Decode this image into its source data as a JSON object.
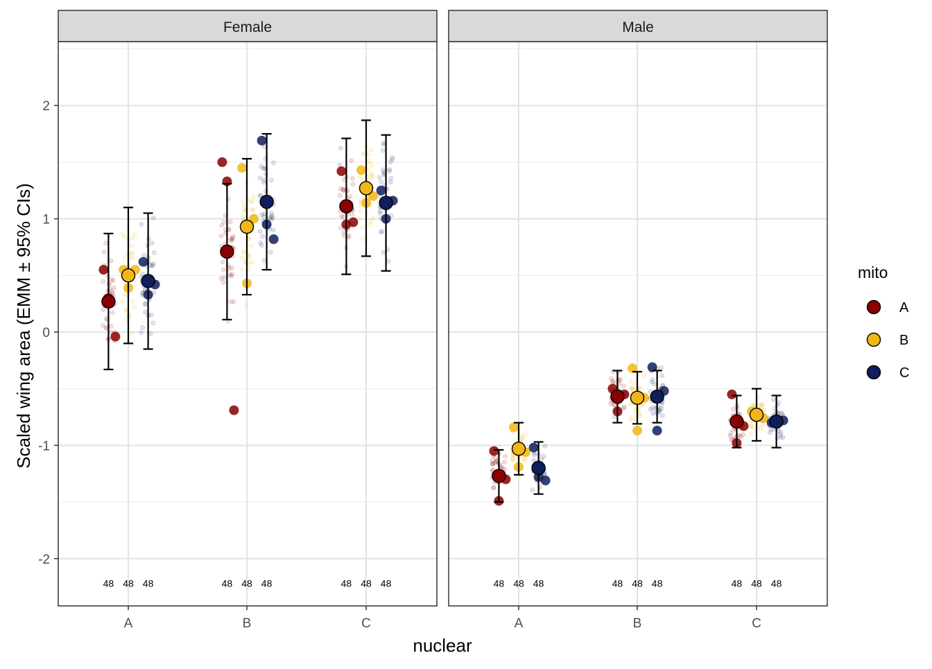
{
  "chart_data": {
    "type": "scatter",
    "subtype": "faceted dot-and-errorbar (estimated marginal means with 95% CI, raw points jittered)",
    "xlabel": "nuclear",
    "ylabel": "Scaled wing area (EMM ± 95% CIs)",
    "ylim": [
      -2.42,
      2.55
    ],
    "y_ticks": [
      -2,
      -1,
      0,
      1,
      2
    ],
    "y_tick_labels": [
      "-2",
      "-1",
      "0",
      "1",
      "2"
    ],
    "categories": [
      "A",
      "B",
      "C"
    ],
    "grid": true,
    "legend": {
      "title": "mito",
      "position": "right",
      "entries": [
        {
          "name": "A",
          "color": "#8B0000"
        },
        {
          "name": "B",
          "color": "#F2B716"
        },
        {
          "name": "C",
          "color": "#101F5B"
        }
      ]
    },
    "count_label_y": -2.22,
    "panels": [
      {
        "strip": "Female",
        "groups": [
          {
            "nuclear": "A",
            "series": [
              {
                "mito": "A",
                "emm": 0.27,
                "lower": -0.33,
                "upper": 0.87,
                "n": "48",
                "replicates": [
                  0.55,
                  0.3,
                  -0.04
                ]
              },
              {
                "mito": "B",
                "emm": 0.5,
                "lower": -0.1,
                "upper": 1.1,
                "n": "48",
                "replicates": [
                  0.55,
                  0.39,
                  0.55
                ]
              },
              {
                "mito": "C",
                "emm": 0.45,
                "lower": -0.15,
                "upper": 1.05,
                "n": "48",
                "replicates": [
                  0.62,
                  0.33,
                  0.42
                ]
              }
            ]
          },
          {
            "nuclear": "B",
            "series": [
              {
                "mito": "A",
                "emm": 0.71,
                "lower": 0.11,
                "upper": 1.31,
                "n": "48",
                "replicates": [
                  1.5,
                  1.33,
                  -0.69
                ]
              },
              {
                "mito": "B",
                "emm": 0.93,
                "lower": 0.33,
                "upper": 1.53,
                "n": "48",
                "replicates": [
                  1.45,
                  0.43,
                  1.0
                ]
              },
              {
                "mito": "C",
                "emm": 1.15,
                "lower": 0.55,
                "upper": 1.75,
                "n": "48",
                "replicates": [
                  1.69,
                  0.95,
                  0.82
                ]
              }
            ]
          },
          {
            "nuclear": "C",
            "series": [
              {
                "mito": "A",
                "emm": 1.11,
                "lower": 0.51,
                "upper": 1.71,
                "n": "48",
                "replicates": [
                  1.42,
                  0.95,
                  0.97
                ]
              },
              {
                "mito": "B",
                "emm": 1.27,
                "lower": 0.67,
                "upper": 1.87,
                "n": "48",
                "replicates": [
                  1.43,
                  1.14,
                  1.2
                ]
              },
              {
                "mito": "C",
                "emm": 1.14,
                "lower": 0.54,
                "upper": 1.74,
                "n": "48",
                "replicates": [
                  1.25,
                  1.0,
                  1.16
                ]
              }
            ]
          }
        ]
      },
      {
        "strip": "Male",
        "groups": [
          {
            "nuclear": "A",
            "series": [
              {
                "mito": "A",
                "emm": -1.27,
                "lower": -1.5,
                "upper": -1.04,
                "n": "48",
                "replicates": [
                  -1.05,
                  -1.49,
                  -1.3
                ]
              },
              {
                "mito": "B",
                "emm": -1.03,
                "lower": -1.26,
                "upper": -0.8,
                "n": "48",
                "replicates": [
                  -0.84,
                  -1.19,
                  -1.06
                ]
              },
              {
                "mito": "C",
                "emm": -1.2,
                "lower": -1.43,
                "upper": -0.97,
                "n": "48",
                "replicates": [
                  -1.02,
                  -1.28,
                  -1.31
                ]
              }
            ]
          },
          {
            "nuclear": "B",
            "series": [
              {
                "mito": "A",
                "emm": -0.57,
                "lower": -0.8,
                "upper": -0.34,
                "n": "48",
                "replicates": [
                  -0.5,
                  -0.7,
                  -0.55
                ]
              },
              {
                "mito": "B",
                "emm": -0.58,
                "lower": -0.81,
                "upper": -0.35,
                "n": "48",
                "replicates": [
                  -0.32,
                  -0.87,
                  -0.58
                ]
              },
              {
                "mito": "C",
                "emm": -0.57,
                "lower": -0.8,
                "upper": -0.34,
                "n": "48",
                "replicates": [
                  -0.31,
                  -0.87,
                  -0.52
                ]
              }
            ]
          },
          {
            "nuclear": "C",
            "series": [
              {
                "mito": "A",
                "emm": -0.79,
                "lower": -1.02,
                "upper": -0.56,
                "n": "48",
                "replicates": [
                  -0.55,
                  -0.98,
                  -0.83
                ]
              },
              {
                "mito": "B",
                "emm": -0.73,
                "lower": -0.96,
                "upper": -0.5,
                "n": "48",
                "replicates": [
                  -0.7,
                  -0.72,
                  -0.76
                ]
              },
              {
                "mito": "C",
                "emm": -0.79,
                "lower": -1.02,
                "upper": -0.56,
                "n": "48",
                "replicates": [
                  -0.8,
                  -0.8,
                  -0.78
                ]
              }
            ]
          }
        ]
      }
    ]
  }
}
